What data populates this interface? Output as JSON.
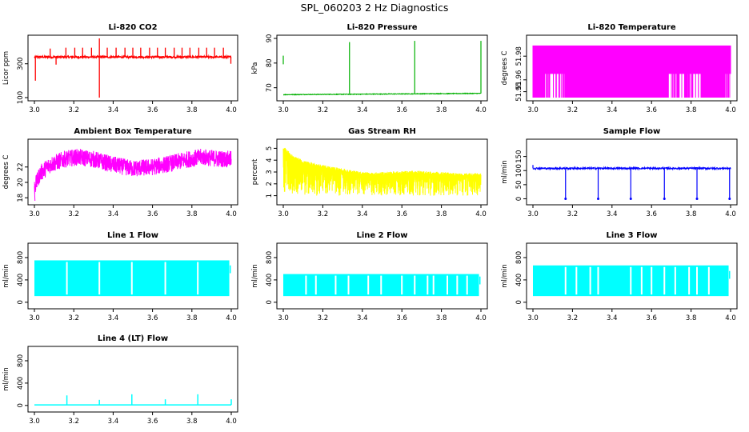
{
  "figure_title": "SPL_060203  2 Hz Diagnostics",
  "chart_data": [
    {
      "id": "co2",
      "type": "line",
      "title": "Li-820 CO2",
      "ylabel": "Licor ppm",
      "color": "#ff0000",
      "xlim": [
        3.0,
        4.0
      ],
      "ylim": [
        100,
        450
      ],
      "xticks": [
        "3.0",
        "3.2",
        "3.4",
        "3.6",
        "3.8",
        "4.0"
      ],
      "yticks": [
        "100",
        "300"
      ],
      "ytick_values": [
        100,
        300
      ],
      "series": [
        {
          "name": "CO2",
          "baseline": 340,
          "noise": 12,
          "spikes": [
            [
              3.005,
              200
            ],
            [
              3.08,
              390
            ],
            [
              3.11,
              295
            ],
            [
              3.16,
              395
            ],
            [
              3.205,
              395
            ],
            [
              3.245,
              395
            ],
            [
              3.29,
              395
            ],
            [
              3.33,
              100
            ],
            [
              3.33,
              450
            ],
            [
              3.37,
              395
            ],
            [
              3.415,
              395
            ],
            [
              3.46,
              395
            ],
            [
              3.5,
              395
            ],
            [
              3.54,
              395
            ],
            [
              3.585,
              395
            ],
            [
              3.625,
              395
            ],
            [
              3.665,
              395
            ],
            [
              3.71,
              395
            ],
            [
              3.75,
              395
            ],
            [
              3.79,
              395
            ],
            [
              3.835,
              395
            ],
            [
              3.875,
              395
            ],
            [
              3.915,
              395
            ],
            [
              3.96,
              395
            ],
            [
              3.998,
              300
            ]
          ]
        }
      ]
    },
    {
      "id": "pressure",
      "type": "line",
      "title": "Li-820 Pressure",
      "ylabel": "kPa",
      "color": "#00b000",
      "xlim": [
        3.0,
        4.0
      ],
      "ylim": [
        66,
        90
      ],
      "xticks": [
        "3.0",
        "3.2",
        "3.4",
        "3.6",
        "3.8",
        "4.0"
      ],
      "yticks": [
        "70",
        "80",
        "90"
      ],
      "ytick_values": [
        70,
        80,
        90
      ],
      "series": [
        {
          "name": "Pressure",
          "baseline_start": 67.2,
          "baseline_end": 67.7,
          "spikes": [
            [
              3.0,
              83
            ],
            [
              3.335,
              88.5
            ],
            [
              3.665,
              89
            ],
            [
              4.0,
              89
            ]
          ]
        }
      ]
    },
    {
      "id": "temperature",
      "type": "line",
      "title": "Li-820 Temperature",
      "ylabel": "degrees C",
      "color": "#ff00ff",
      "xlim": [
        3.0,
        4.0
      ],
      "ylim": [
        51.945,
        51.995
      ],
      "xticks": [
        "3.0",
        "3.2",
        "3.4",
        "3.6",
        "3.8",
        "4.0"
      ],
      "yticks": [
        "51.95",
        "51.96",
        "51.98"
      ],
      "ytick_values": [
        51.95,
        51.96,
        51.98
      ],
      "series": [
        {
          "name": "Temperature",
          "high": 51.989,
          "low": 51.945,
          "mid": 51.965,
          "full_bands": [
            [
              3.0,
              3.06
            ],
            [
              3.17,
              3.4
            ],
            [
              3.4,
              3.68
            ],
            [
              3.85,
              3.97
            ]
          ]
        }
      ]
    },
    {
      "id": "ambient",
      "type": "line",
      "title": "Ambient Box Temperature",
      "ylabel": "degrees C",
      "color": "#ff00ff",
      "xlim": [
        3.0,
        4.0
      ],
      "ylim": [
        17.5,
        25.2
      ],
      "xticks": [
        "3.0",
        "3.2",
        "3.4",
        "3.6",
        "3.8",
        "4.0"
      ],
      "yticks": [
        "18",
        "20",
        "22"
      ],
      "ytick_values": [
        18,
        20,
        22
      ],
      "series": [
        {
          "name": "Ambient",
          "profile": [
            [
              3.0,
              19.3
            ],
            [
              3.03,
              21.2
            ],
            [
              3.08,
              22.3
            ],
            [
              3.15,
              23.0
            ],
            [
              3.22,
              23.3
            ],
            [
              3.3,
              23.0
            ],
            [
              3.4,
              22.3
            ],
            [
              3.5,
              21.8
            ],
            [
              3.6,
              22.0
            ],
            [
              3.7,
              22.5
            ],
            [
              3.78,
              23.0
            ],
            [
              3.85,
              23.3
            ],
            [
              3.92,
              23.1
            ],
            [
              4.0,
              23.0
            ]
          ],
          "amplitude": 1.1
        }
      ]
    },
    {
      "id": "rh",
      "type": "line",
      "title": "Gas Stream RH",
      "ylabel": "percent",
      "color": "#ffff00",
      "xlim": [
        3.0,
        4.0
      ],
      "ylim": [
        0.5,
        5.5
      ],
      "xticks": [
        "3.0",
        "3.2",
        "3.4",
        "3.6",
        "3.8",
        "4.0"
      ],
      "yticks": [
        "1",
        "2",
        "3",
        "4",
        "5"
      ],
      "ytick_values": [
        1,
        2,
        3,
        4,
        5
      ],
      "series": [
        {
          "name": "RH",
          "profile": [
            [
              3.0,
              5.2
            ],
            [
              3.05,
              4.4
            ],
            [
              3.1,
              4.0
            ],
            [
              3.2,
              3.6
            ],
            [
              3.3,
              3.3
            ],
            [
              3.4,
              3.0
            ],
            [
              3.5,
              3.0
            ],
            [
              3.6,
              3.1
            ],
            [
              3.7,
              3.1
            ],
            [
              3.8,
              3.0
            ],
            [
              3.9,
              2.9
            ],
            [
              4.0,
              2.9
            ]
          ],
          "low": 1.0
        }
      ]
    },
    {
      "id": "sample",
      "type": "line",
      "title": "Sample Flow",
      "ylabel": "ml/min",
      "color": "#0000ff",
      "xlim": [
        3.0,
        4.0
      ],
      "ylim": [
        -10,
        200
      ],
      "xticks": [
        "3.0",
        "3.2",
        "3.4",
        "3.6",
        "3.8",
        "4.0"
      ],
      "yticks": [
        "0",
        "50",
        "100",
        "150"
      ],
      "ytick_values": [
        0,
        50,
        100,
        150
      ],
      "series": [
        {
          "name": "Sample",
          "baseline": 108,
          "noise": 3,
          "start_spike": 120,
          "drops": [
            3.165,
            3.33,
            3.495,
            3.665,
            3.83,
            3.995
          ]
        }
      ]
    },
    {
      "id": "line1",
      "type": "line",
      "title": "Line 1 Flow",
      "ylabel": "ml/min",
      "color": "#00ffff",
      "xlim": [
        3.0,
        4.0
      ],
      "ylim": [
        -60,
        1000
      ],
      "xticks": [
        "3.0",
        "3.2",
        "3.4",
        "3.6",
        "3.8",
        "4.0"
      ],
      "yticks": [
        "0",
        "400",
        "800"
      ],
      "ytick_values": [
        0,
        400,
        800
      ],
      "series": [
        {
          "name": "Line 1",
          "high": 750,
          "low": 110,
          "gaps": [
            3.165,
            3.33,
            3.495,
            3.665,
            3.83
          ],
          "end": 3.99,
          "tail": 600
        }
      ]
    },
    {
      "id": "line2",
      "type": "line",
      "title": "Line 2 Flow",
      "ylabel": "ml/min",
      "color": "#00ffff",
      "xlim": [
        3.0,
        4.0
      ],
      "ylim": [
        -60,
        1000
      ],
      "xticks": [
        "3.0",
        "3.2",
        "3.4",
        "3.6",
        "3.8",
        "4.0"
      ],
      "yticks": [
        "0",
        "400",
        "800"
      ],
      "ytick_values": [
        0,
        400,
        800
      ],
      "series": [
        {
          "name": "Line 2",
          "high": 505,
          "low": 110,
          "gaps": [
            3.115,
            3.165,
            3.265,
            3.33,
            3.43,
            3.495,
            3.6,
            3.665,
            3.73,
            3.76,
            3.83,
            3.88,
            3.93
          ],
          "end": 3.99,
          "tail": 400
        }
      ]
    },
    {
      "id": "line3",
      "type": "line",
      "title": "Line 3 Flow",
      "ylabel": "ml/min",
      "color": "#00ffff",
      "xlim": [
        3.0,
        4.0
      ],
      "ylim": [
        -60,
        1000
      ],
      "xticks": [
        "3.0",
        "3.2",
        "3.4",
        "3.6",
        "3.8",
        "4.0"
      ],
      "yticks": [
        "0",
        "400",
        "800"
      ],
      "ytick_values": [
        0,
        400,
        800
      ],
      "series": [
        {
          "name": "Line 3",
          "high": 660,
          "low": 110,
          "gaps": [
            3.165,
            3.22,
            3.29,
            3.33,
            3.495,
            3.55,
            3.6,
            3.665,
            3.72,
            3.79,
            3.83,
            3.89
          ],
          "end": 3.99,
          "tail": 500
        }
      ]
    },
    {
      "id": "line4",
      "type": "line",
      "title": "Line 4 (LT) Flow",
      "ylabel": "ml/min",
      "color": "#00ffff",
      "xlim": [
        3.0,
        4.0
      ],
      "ylim": [
        -60,
        1000
      ],
      "xticks": [
        "3.0",
        "3.2",
        "3.4",
        "3.6",
        "3.8",
        "4.0"
      ],
      "yticks": [
        "0",
        "400",
        "800"
      ],
      "ytick_values": [
        0,
        400,
        800
      ],
      "series": [
        {
          "name": "Line 4",
          "baseline": 10,
          "spikes": [
            [
              3.165,
              180
            ],
            [
              3.33,
              100
            ],
            [
              3.495,
              200
            ],
            [
              3.665,
              110
            ],
            [
              3.83,
              200
            ],
            [
              4.0,
              110
            ]
          ]
        }
      ]
    }
  ]
}
